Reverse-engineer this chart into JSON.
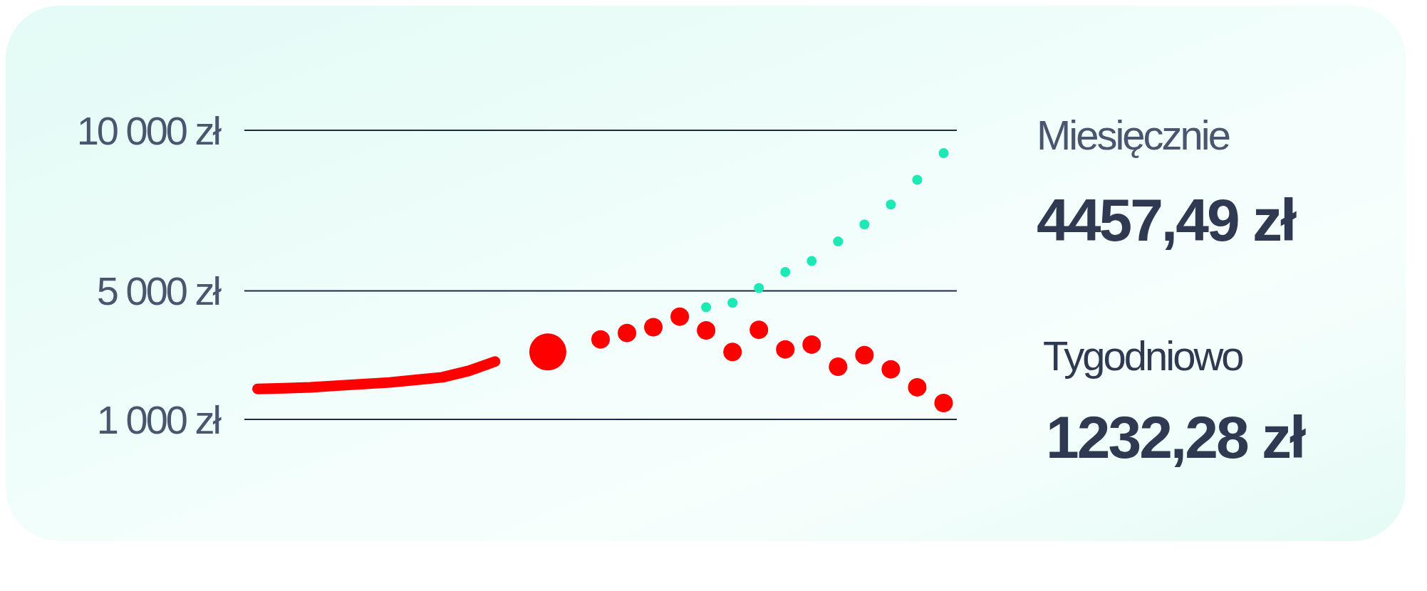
{
  "chart_data": {
    "type": "line",
    "categories": [
      null,
      null,
      null,
      null,
      null,
      null,
      null,
      null,
      null,
      null,
      null,
      null,
      null,
      null,
      null,
      null,
      null,
      null,
      null,
      null,
      null,
      null,
      null,
      null,
      null,
      null,
      null
    ],
    "series": [
      {
        "type": "line",
        "color": "#ff0000",
        "values": [
          1950,
          1970,
          2000,
          2050,
          2100,
          2150,
          2230,
          2310,
          2510,
          2800,
          null,
          null,
          null,
          null,
          null,
          null,
          null,
          null,
          null,
          null,
          null,
          null,
          null,
          null,
          null,
          null,
          null
        ]
      },
      {
        "type": "scatter",
        "color": "#ff0000",
        "values": [
          null,
          null,
          null,
          null,
          null,
          null,
          null,
          null,
          null,
          null,
          null,
          3100,
          null,
          null,
          null,
          null,
          null,
          null,
          null,
          null,
          null,
          null,
          null,
          null,
          null,
          null,
          null
        ]
      },
      {
        "type": "scatter",
        "color": "#ff0000",
        "values": [
          null,
          null,
          null,
          null,
          null,
          null,
          null,
          null,
          null,
          null,
          null,
          null,
          null,
          3490,
          3690,
          3870,
          4200,
          3770,
          3100,
          3790,
          3180,
          3330,
          2640,
          3000,
          2560,
          2000,
          1510
        ]
      },
      {
        "type": "scatter",
        "color": "#1de9b6",
        "values": [
          null,
          null,
          null,
          null,
          null,
          null,
          null,
          null,
          null,
          null,
          null,
          null,
          null,
          null,
          null,
          null,
          null,
          4490,
          4630,
          5090,
          5590,
          5930,
          6540,
          7070,
          7690,
          8460,
          9290
        ]
      }
    ],
    "ylim": [
      1000,
      10000
    ],
    "yticks": [
      {
        "value": 1000,
        "label": "1 000 zł"
      },
      {
        "value": 5000,
        "label": "5 000 zł"
      },
      {
        "value": 10000,
        "label": "10 000 zł"
      }
    ],
    "grid": "y",
    "tick_labels": "y",
    "annotations": [
      "Miesięcznie",
      "4457,49 zł",
      "Tygodniowo",
      "1232,28 zł"
    ]
  }
}
